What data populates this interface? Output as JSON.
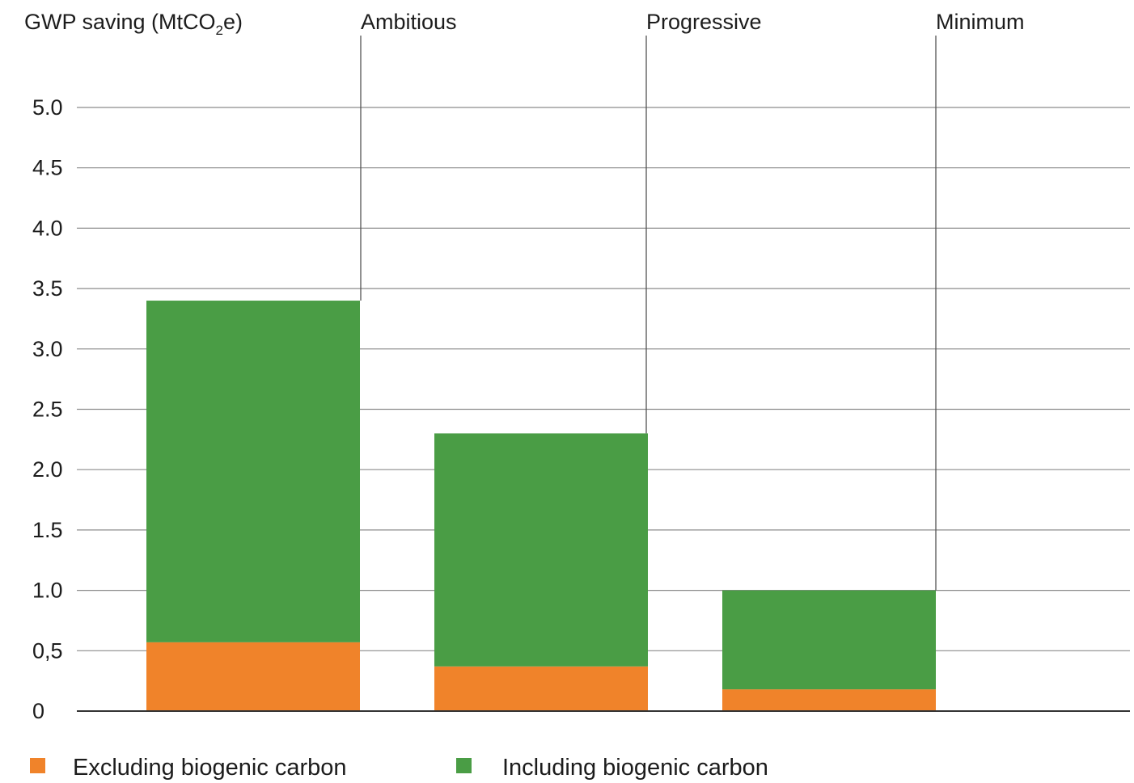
{
  "chart_data": {
    "type": "bar",
    "stacked": true,
    "title": "",
    "ylabel_prefix": "GWP  saving (MtCO",
    "ylabel_sub": "2",
    "ylabel_suffix": "e)",
    "xlabel": "",
    "ylim": [
      0,
      5.0
    ],
    "y_ticks": [
      {
        "value": 0,
        "label": "0"
      },
      {
        "value": 0.5,
        "label": "0,5"
      },
      {
        "value": 1.0,
        "label": "1.0"
      },
      {
        "value": 1.5,
        "label": "1.5"
      },
      {
        "value": 2.0,
        "label": "2.0"
      },
      {
        "value": 2.5,
        "label": "2.5"
      },
      {
        "value": 3.0,
        "label": "3.0"
      },
      {
        "value": 3.5,
        "label": "3.5"
      },
      {
        "value": 4.0,
        "label": "4.0"
      },
      {
        "value": 4.5,
        "label": "4.5"
      },
      {
        "value": 5.0,
        "label": "5.0"
      }
    ],
    "categories": [
      "Ambitious",
      "Progressive",
      "Minimum"
    ],
    "series": [
      {
        "name": "Excluding biogenic carbon",
        "color": "#f0832a",
        "values": [
          0.57,
          0.37,
          0.18
        ]
      },
      {
        "name": "Including biogenic carbon",
        "color": "#4a9d45",
        "values": [
          2.83,
          1.93,
          0.82
        ]
      }
    ],
    "grid": true,
    "legend_position": "bottom"
  }
}
